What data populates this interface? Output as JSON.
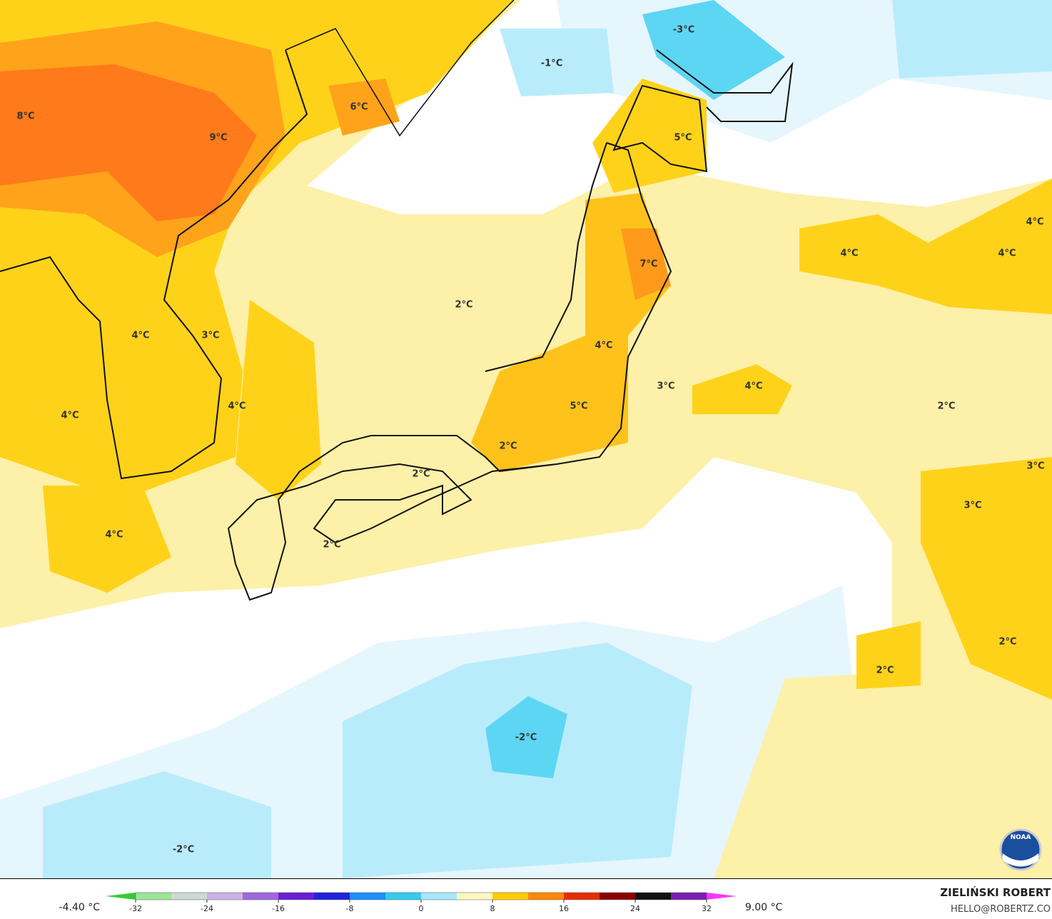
{
  "map": {
    "labels": [
      "-3°C",
      "-1°C",
      "6°C",
      "8°C",
      "9°C",
      "5°C",
      "4°C",
      "4°C",
      "4°C",
      "7°C",
      "2°C",
      "4°C",
      "3°C",
      "4°C",
      "3°C",
      "4°C",
      "2°C",
      "5°C",
      "4°C",
      "4°C",
      "2°C",
      "2°C",
      "3°C",
      "3°C",
      "4°C",
      "2°C",
      "2°C",
      "2°C",
      "-2°C",
      "-2°C"
    ],
    "logo": "NOAA"
  },
  "colorbar": {
    "min_label": "-4.40 °C",
    "max_label": "9.00 °C",
    "lim": [
      -32,
      32
    ],
    "ticks": [
      -32,
      -24,
      -16,
      -8,
      0,
      8,
      16,
      24,
      32
    ],
    "colors": [
      "#33cc33",
      "#99e699",
      "#cfd9cf",
      "#c9b3e6",
      "#a066e0",
      "#6a1fd6",
      "#2222dd",
      "#1e90ff",
      "#33ccf0",
      "#a6e8fa",
      "#fff6c2",
      "#ffcc00",
      "#ff8800",
      "#e62e00",
      "#8b0000",
      "#111111",
      "#7a1fb3",
      "#ff33ff"
    ]
  },
  "credit": {
    "author": "ZIELIŃSKI ROBERT",
    "contact": "HELLO@ROBERTZ.CO"
  }
}
